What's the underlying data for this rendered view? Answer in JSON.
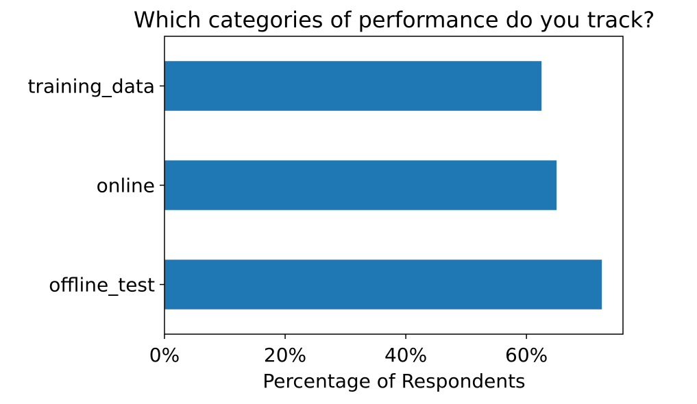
{
  "chart_data": {
    "type": "bar",
    "orientation": "horizontal",
    "title": "Which categories of performance do you track?",
    "xlabel": "Percentage of Respondents",
    "ylabel": "",
    "categories": [
      "offline_test",
      "online",
      "training_data"
    ],
    "values": [
      0.725,
      0.65,
      0.625
    ],
    "xlim": [
      0,
      0.76
    ],
    "xticks": [
      0,
      0.2,
      0.4,
      0.6
    ],
    "xtick_labels": [
      "0%",
      "20%",
      "40%",
      "60%"
    ],
    "bar_color": "#1f77b4",
    "grid": false,
    "legend": "none"
  }
}
